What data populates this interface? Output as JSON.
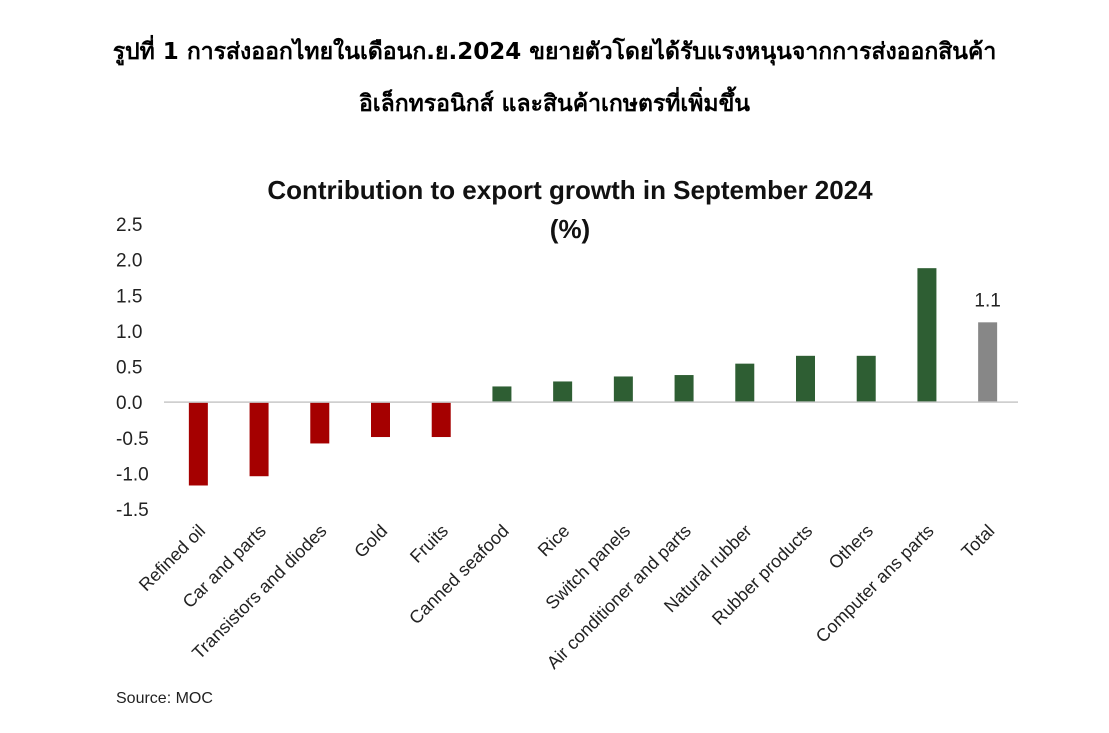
{
  "figure_heading": {
    "line1": "รูปที่ 1 การส่งออกไทยในเดือนก.ย.2024 ขยายตัวโดยได้รับแรงหนุนจากการส่งออกสินค้า",
    "line2": "อิเล็กทรอนิกส์ และสินค้าเกษตรที่เพิ่มขึ้น"
  },
  "source": "Source: MOC",
  "colors": {
    "negative": "#a50000",
    "positive": "#2e5e33",
    "total": "#878787"
  },
  "chart_data": {
    "type": "bar",
    "title": "Contribution to export growth in September 2024",
    "subtitle": "(%)",
    "categories": [
      "Refined oil",
      "Car and parts",
      "Transistors and diodes",
      "Gold",
      "Fruits",
      "Canned seafood",
      "Rice",
      "Switch panels",
      "Air conditioner and parts",
      "Natural rubber",
      "Rubber products",
      "Others",
      "Computer ans parts",
      "Total"
    ],
    "values": [
      -1.17,
      -1.04,
      -0.58,
      -0.49,
      -0.49,
      0.22,
      0.29,
      0.36,
      0.38,
      0.54,
      0.65,
      0.65,
      1.88,
      1.12
    ],
    "data_labels": [
      {
        "category": "Total",
        "text": "1.1"
      }
    ],
    "ylim": [
      -1.5,
      2.5
    ],
    "yticks": [
      "2.5",
      "2.0",
      "1.5",
      "1.0",
      "0.5",
      "0.0",
      "-0.5",
      "-1.0",
      "-1.5"
    ],
    "grid": false,
    "legend": "none"
  }
}
